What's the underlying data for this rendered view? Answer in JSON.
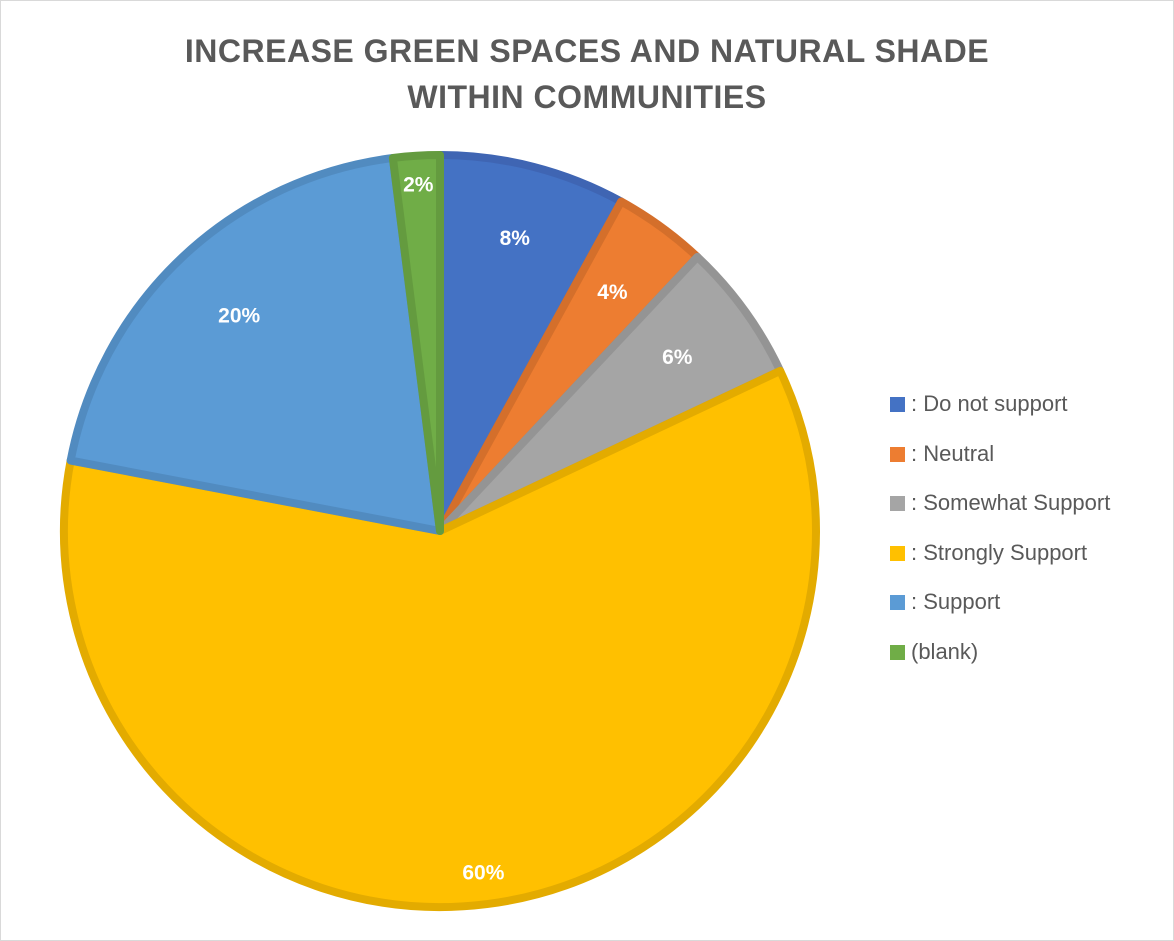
{
  "chart_data": {
    "type": "pie",
    "title_lines": [
      "INCREASE GREEN SPACES AND NATURAL SHADE",
      "WITHIN COMMUNITIES"
    ],
    "legend_position": "right",
    "slices": [
      {
        "label": ": Do not support",
        "value": 8,
        "data_label": "8%",
        "color": "#4472C4",
        "border": "#3f65b3"
      },
      {
        "label": ": Neutral",
        "value": 4,
        "data_label": "4%",
        "color": "#ED7D31",
        "border": "#d46f2b"
      },
      {
        "label": ": Somewhat Support",
        "value": 6,
        "data_label": "6%",
        "color": "#A5A5A5",
        "border": "#949494"
      },
      {
        "label": ": Strongly Support",
        "value": 60,
        "data_label": "60%",
        "color": "#FFC000",
        "border": "#e3ab00"
      },
      {
        "label": ": Support",
        "value": 20,
        "data_label": "20%",
        "color": "#5B9BD5",
        "border": "#518bc0"
      },
      {
        "label": "(blank)",
        "value": 2,
        "data_label": "2%",
        "color": "#70AD47",
        "border": "#649b3f"
      }
    ]
  }
}
